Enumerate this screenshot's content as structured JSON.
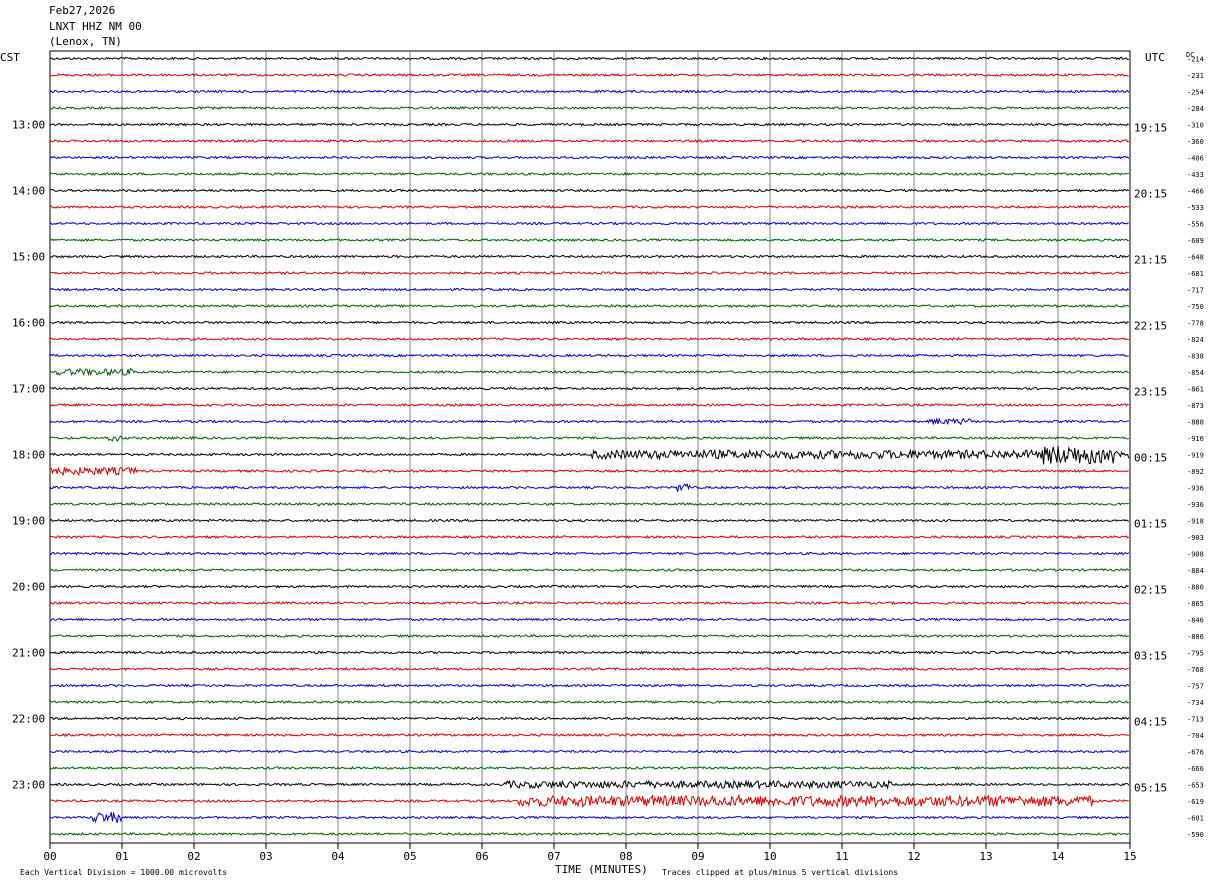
{
  "header": {
    "date": "Feb27,2026",
    "station": "LNXT HHZ NM 00",
    "location": "(Lenox, TN)"
  },
  "left_axis_label": "CST",
  "right_axis_label": "UTC",
  "dc_label": "DC",
  "footer": {
    "vertical_division": "Each Vertical Division = 1000.00 microvolts",
    "xlabel": "TIME (MINUTES)",
    "clip_note": "Traces clipped at plus/minus 5 vertical divisions"
  },
  "colors": {
    "cycle": [
      "#000000",
      "#e00000",
      "#0000d0",
      "#006000"
    ],
    "grid": "#808080"
  },
  "chart_data": {
    "type": "line",
    "subtype": "helicorder",
    "xlim": [
      0,
      15
    ],
    "x_unit": "minutes",
    "x_ticks": [
      "00",
      "01",
      "02",
      "03",
      "04",
      "05",
      "06",
      "07",
      "08",
      "09",
      "10",
      "11",
      "12",
      "13",
      "14",
      "15"
    ],
    "trace_count": 48,
    "minutes_per_trace": 15,
    "left_hour_labels": [
      "13:00",
      "14:00",
      "15:00",
      "16:00",
      "17:00",
      "18:00",
      "19:00",
      "20:00",
      "21:00",
      "22:00",
      "23:00"
    ],
    "right_hour_labels": [
      "19:15",
      "20:15",
      "21:15",
      "22:15",
      "23:15",
      "00:15",
      "01:15",
      "02:15",
      "03:15",
      "04:15",
      "05:15"
    ],
    "dc_offsets": [
      "-214",
      "-231",
      "-254",
      "-284",
      "-310",
      "-360",
      "-406",
      "-433",
      "-466",
      "-533",
      "-556",
      "-609",
      "-648",
      "-681",
      "-717",
      "-750",
      "-778",
      "-824",
      "-838",
      "-854",
      "-861",
      "-873",
      "-880",
      "-916",
      "-919",
      "-892",
      "-936",
      "-936",
      "-918",
      "-903",
      "-908",
      "-884",
      "-880",
      "-865",
      "-846",
      "-806",
      "-795",
      "-768",
      "-757",
      "-734",
      "-713",
      "-704",
      "-676",
      "-666",
      "-653",
      "-619",
      "-601",
      "-590"
    ],
    "events": [
      {
        "trace": 19,
        "start_min": 0.1,
        "end_min": 1.2,
        "amplitude": 0.4
      },
      {
        "trace": 22,
        "start_min": 12.2,
        "end_min": 12.8,
        "amplitude": 0.35
      },
      {
        "trace": 23,
        "start_min": 0.8,
        "end_min": 1.0,
        "amplitude": 0.4
      },
      {
        "trace": 24,
        "start_min": 7.5,
        "end_min": 15.0,
        "amplitude": 0.6
      },
      {
        "trace": 24,
        "start_min": 13.8,
        "end_min": 14.9,
        "amplitude": 1.6
      },
      {
        "trace": 25,
        "start_min": 0.0,
        "end_min": 1.2,
        "amplitude": 0.5
      },
      {
        "trace": 26,
        "start_min": 8.7,
        "end_min": 8.9,
        "amplitude": 0.6
      },
      {
        "trace": 27,
        "start_min": 3.7,
        "end_min": 3.8,
        "amplitude": 0.3
      },
      {
        "trace": 44,
        "start_min": 6.3,
        "end_min": 11.7,
        "amplitude": 0.45
      },
      {
        "trace": 45,
        "start_min": 6.5,
        "end_min": 14.5,
        "amplitude": 0.8
      },
      {
        "trace": 46,
        "start_min": 0.6,
        "end_min": 1.0,
        "amplitude": 0.8
      }
    ]
  }
}
